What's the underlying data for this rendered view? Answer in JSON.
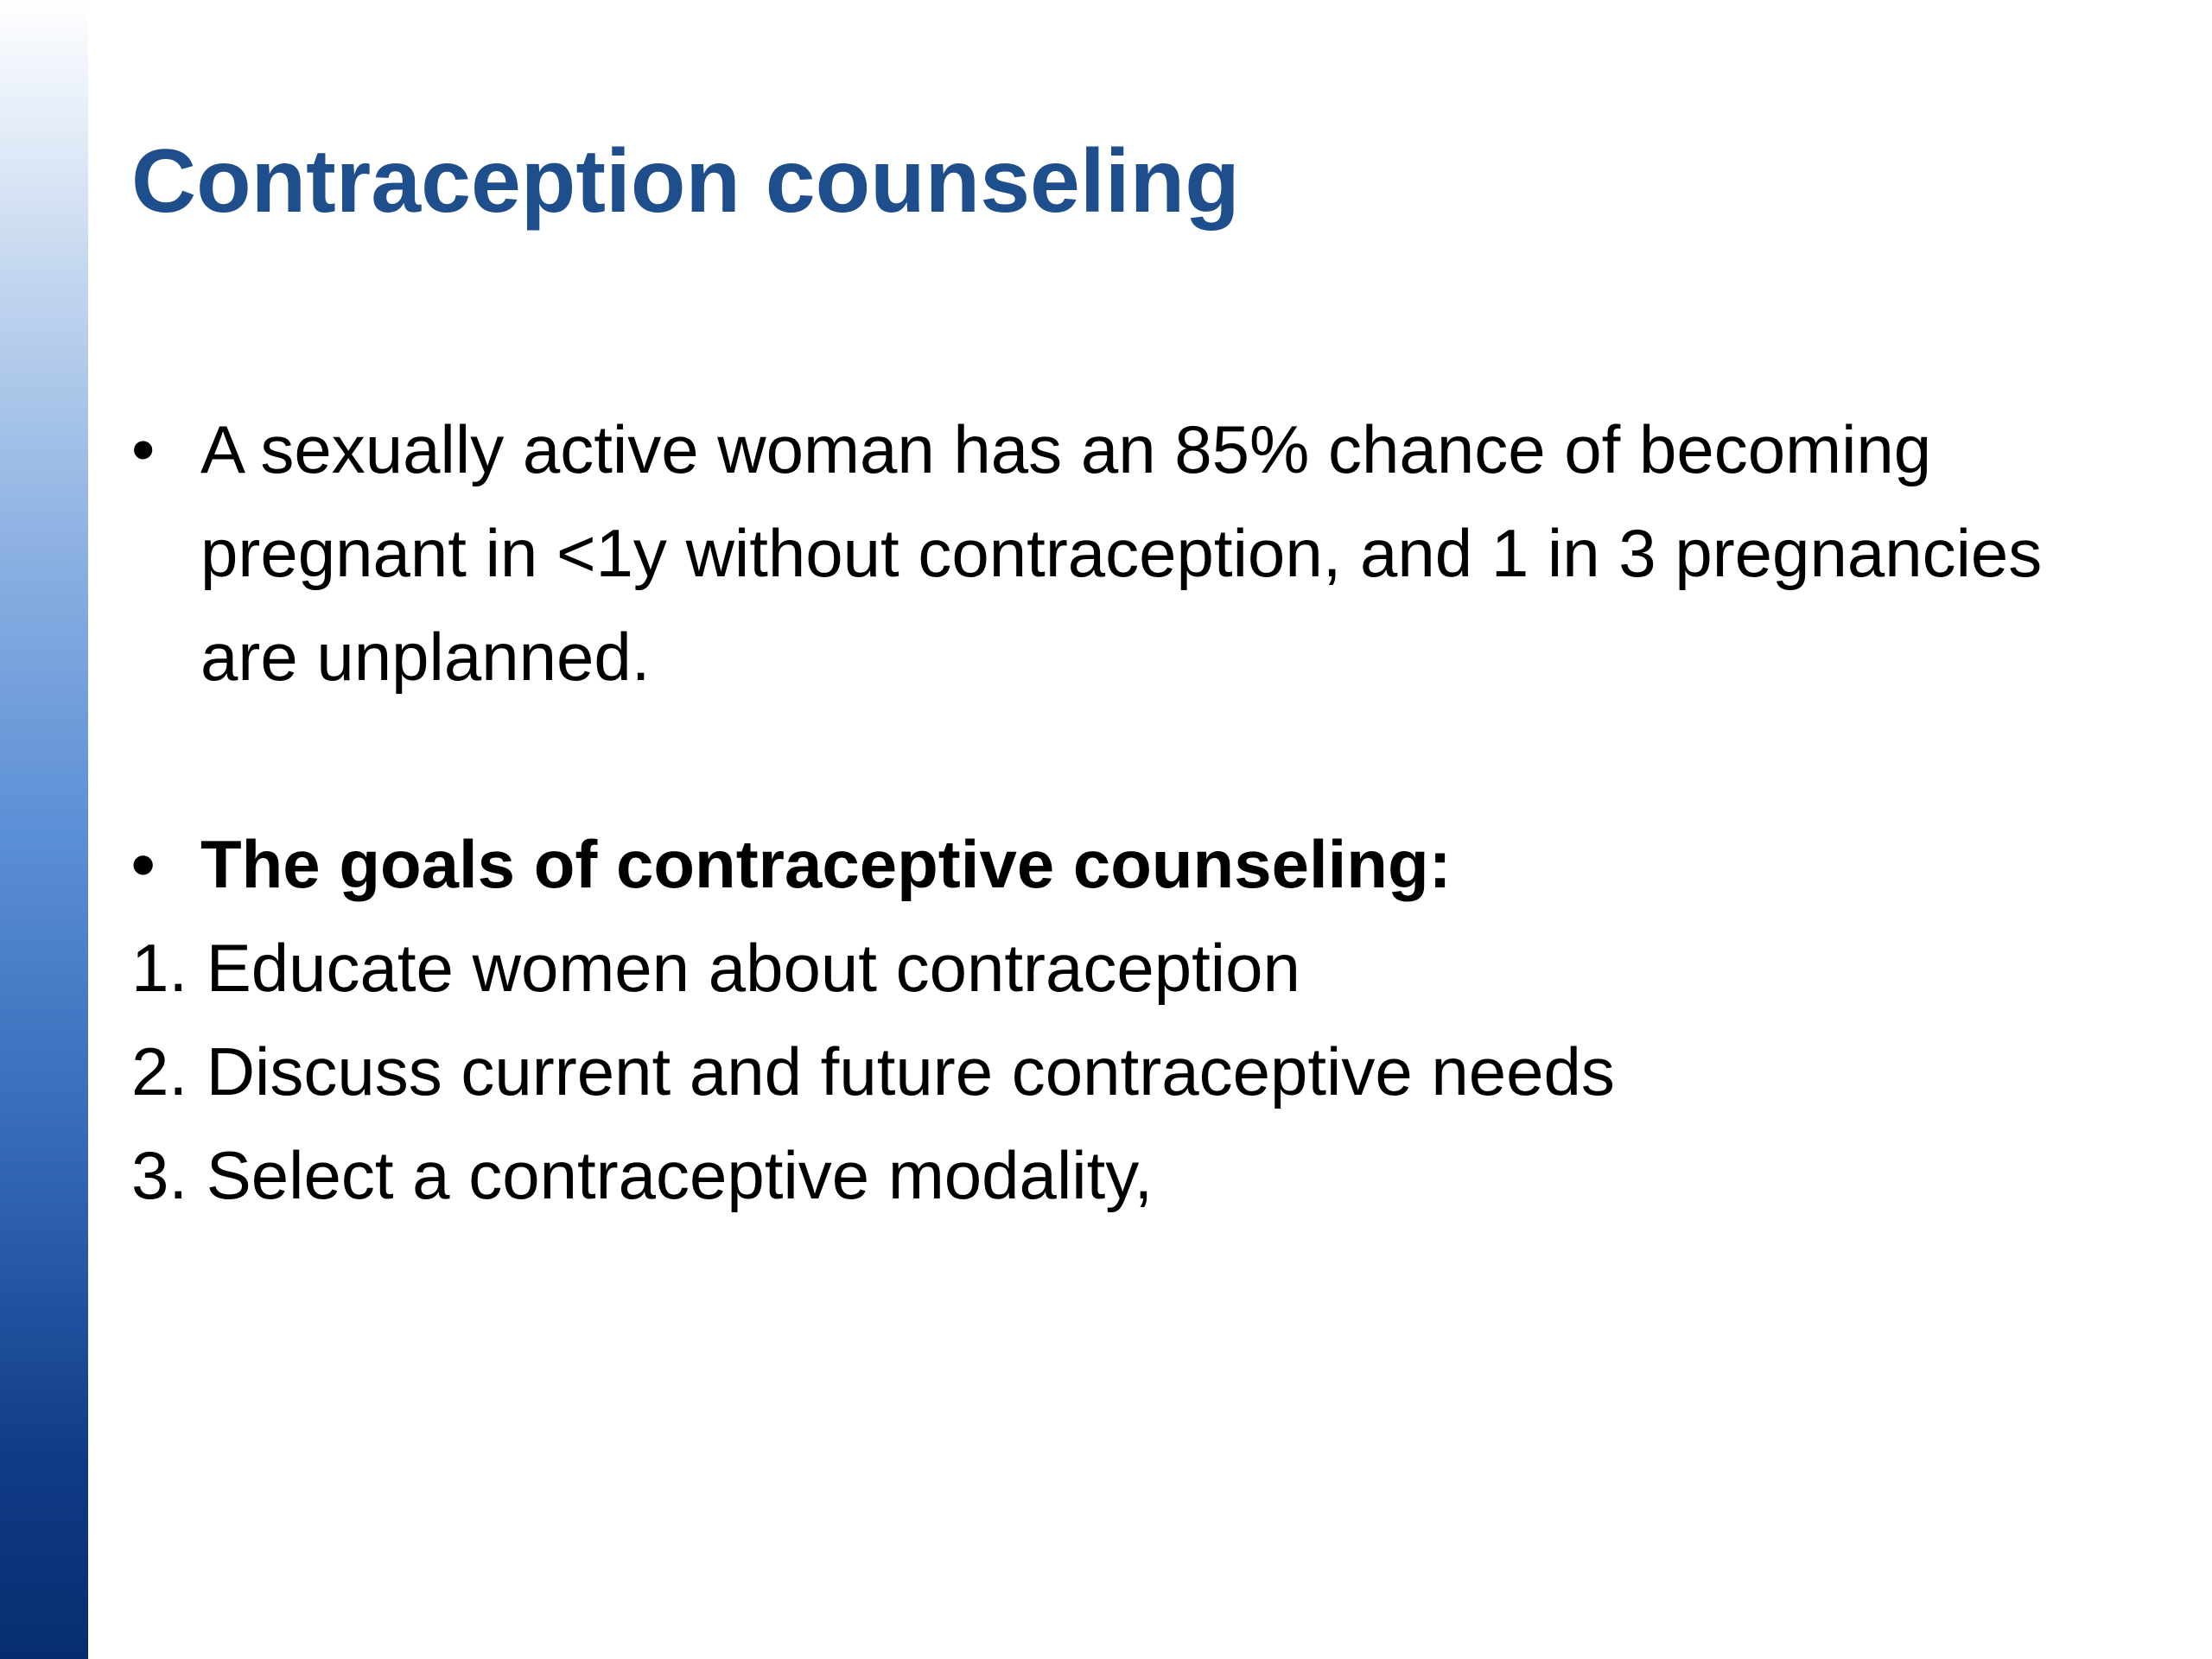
{
  "slide": {
    "title": "Contraception counseling",
    "bullets": [
      {
        "marker": "•",
        "text": "A sexually active woman has an 85% chance of becoming pregnant in <1y without contraception, and 1 in 3 pregnancies are unplanned."
      },
      {
        "marker": "•",
        "text": "The goals of contraceptive counseling:"
      }
    ],
    "goals": [
      "1. Educate women about contraception",
      "2. Discuss current and future contraceptive needs",
      "3. Select a contraceptive modality,"
    ]
  },
  "colors": {
    "title": "#1f4e8c",
    "sidebar_top": "#ffffff",
    "sidebar_bottom": "#072d70",
    "text": "#000000"
  }
}
